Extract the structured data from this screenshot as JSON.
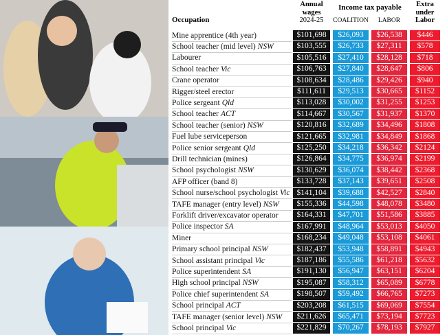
{
  "header": {
    "occupation": "Occupation",
    "wages": [
      "Annual",
      "wages",
      "2024-25"
    ],
    "tax": "Income tax payable",
    "coalition": "COALITION",
    "labor": "LABOR",
    "extra": [
      "Extra",
      "under",
      "Labor"
    ]
  },
  "table": {
    "rows": [
      {
        "occupation": "Mine apprentice (4th year)",
        "wages": "$101,698",
        "coalition": "$26,093",
        "labor": "$26,538",
        "extra": "$446"
      },
      {
        "occupation": "School teacher (mid level)",
        "state": "NSW",
        "wages": "$103,555",
        "coalition": "$26,733",
        "labor": "$27,311",
        "extra": "$578"
      },
      {
        "occupation": "Labourer",
        "wages": "$105,516",
        "coalition": "$27,410",
        "labor": "$28,128",
        "extra": "$718"
      },
      {
        "occupation": "School teacher",
        "state": "Vic",
        "wages": "$106,763",
        "coalition": "$27,840",
        "labor": "$28,647",
        "extra": "$806"
      },
      {
        "occupation": "Crane operator",
        "wages": "$108,634",
        "coalition": "$28,486",
        "labor": "$29,426",
        "extra": "$940"
      },
      {
        "occupation": "Rigger/steel erector",
        "wages": "$111,611",
        "coalition": "$29,513",
        "labor": "$30,665",
        "extra": "$1152"
      },
      {
        "occupation": "Police sergeant",
        "state": "Qld",
        "wages": "$113,028",
        "coalition": "$30,002",
        "labor": "$31,255",
        "extra": "$1253"
      },
      {
        "occupation": "School teacher",
        "state": "ACT",
        "wages": "$114,667",
        "coalition": "$30,567",
        "labor": "$31,937",
        "extra": "$1370"
      },
      {
        "occupation": "School teacher (senior)",
        "state": "NSW",
        "wages": "$120,816",
        "coalition": "$32,689",
        "labor": "$34,496",
        "extra": "$1808"
      },
      {
        "occupation": "Fuel lube serviceperson",
        "wages": "$121,665",
        "coalition": "$32,981",
        "labor": "$34,849",
        "extra": "$1868"
      },
      {
        "occupation": "Police senior sergeant",
        "state": "Qld",
        "wages": "$125,250",
        "coalition": "$34,218",
        "labor": "$36,342",
        "extra": "$2124"
      },
      {
        "occupation": "Drill technician (mines)",
        "wages": "$126,864",
        "coalition": "$34,775",
        "labor": "$36,974",
        "extra": "$2199"
      },
      {
        "occupation": "School psychologist",
        "state": "NSW",
        "wages": "$130,629",
        "coalition": "$36,074",
        "labor": "$38,442",
        "extra": "$2368"
      },
      {
        "occupation": "AFP officer (band 8)",
        "wages": "$133,728",
        "coalition": "$37,143",
        "labor": "$39,651",
        "extra": "$2508"
      },
      {
        "occupation": "School nurse/school psychologist",
        "state": "Vic",
        "wages": "$141,104",
        "coalition": "$39,688",
        "labor": "$42,527",
        "extra": "$2840"
      },
      {
        "occupation": "TAFE manager (entry level)",
        "state": "NSW",
        "wages": "$155,336",
        "coalition": "$44,598",
        "labor": "$48,078",
        "extra": "$3480"
      },
      {
        "occupation": "Forklift driver/excavator operator",
        "wages": "$164,331",
        "coalition": "$47,701",
        "labor": "$51,586",
        "extra": "$3885"
      },
      {
        "occupation": "Police inspector",
        "state": "SA",
        "wages": "$167,991",
        "coalition": "$48,964",
        "labor": "$53,013",
        "extra": "$4050"
      },
      {
        "occupation": "Miner",
        "wages": "$168,234",
        "coalition": "$49,048",
        "labor": "$53,108",
        "extra": "$4061"
      },
      {
        "occupation": "Primary school principal",
        "state": "NSW",
        "wages": "$182,437",
        "coalition": "$53,948",
        "labor": "$58,891",
        "extra": "$4943"
      },
      {
        "occupation": "School assistant principal",
        "state": "Vic",
        "wages": "$187,186",
        "coalition": "$55,586",
        "labor": "$61,218",
        "extra": "$5632"
      },
      {
        "occupation": "Police superintendent",
        "state": "SA",
        "wages": "$191,130",
        "coalition": "$56,947",
        "labor": "$63,151",
        "extra": "$6204"
      },
      {
        "occupation": "High school principal",
        "state": "NSW",
        "wages": "$195,087",
        "coalition": "$58,312",
        "labor": "$65,089",
        "extra": "$6778"
      },
      {
        "occupation": "Police chief superintendent",
        "state": "SA",
        "wages": "$198,507",
        "coalition": "$59,492",
        "labor": "$66,765",
        "extra": "$7273"
      },
      {
        "occupation": "School principal",
        "state": "ACT",
        "wages": "$203,208",
        "coalition": "$61,515",
        "labor": "$69,069",
        "extra": "$7554"
      },
      {
        "occupation": "TAFE manager (senior level)",
        "state": "NSW",
        "wages": "$211,626",
        "coalition": "$65,471",
        "labor": "$73,194",
        "extra": "$7723"
      },
      {
        "occupation": "School principal",
        "state": "Vic",
        "wages": "$221,829",
        "coalition": "$70,267",
        "labor": "$78,193",
        "extra": "$7927"
      }
    ]
  }
}
